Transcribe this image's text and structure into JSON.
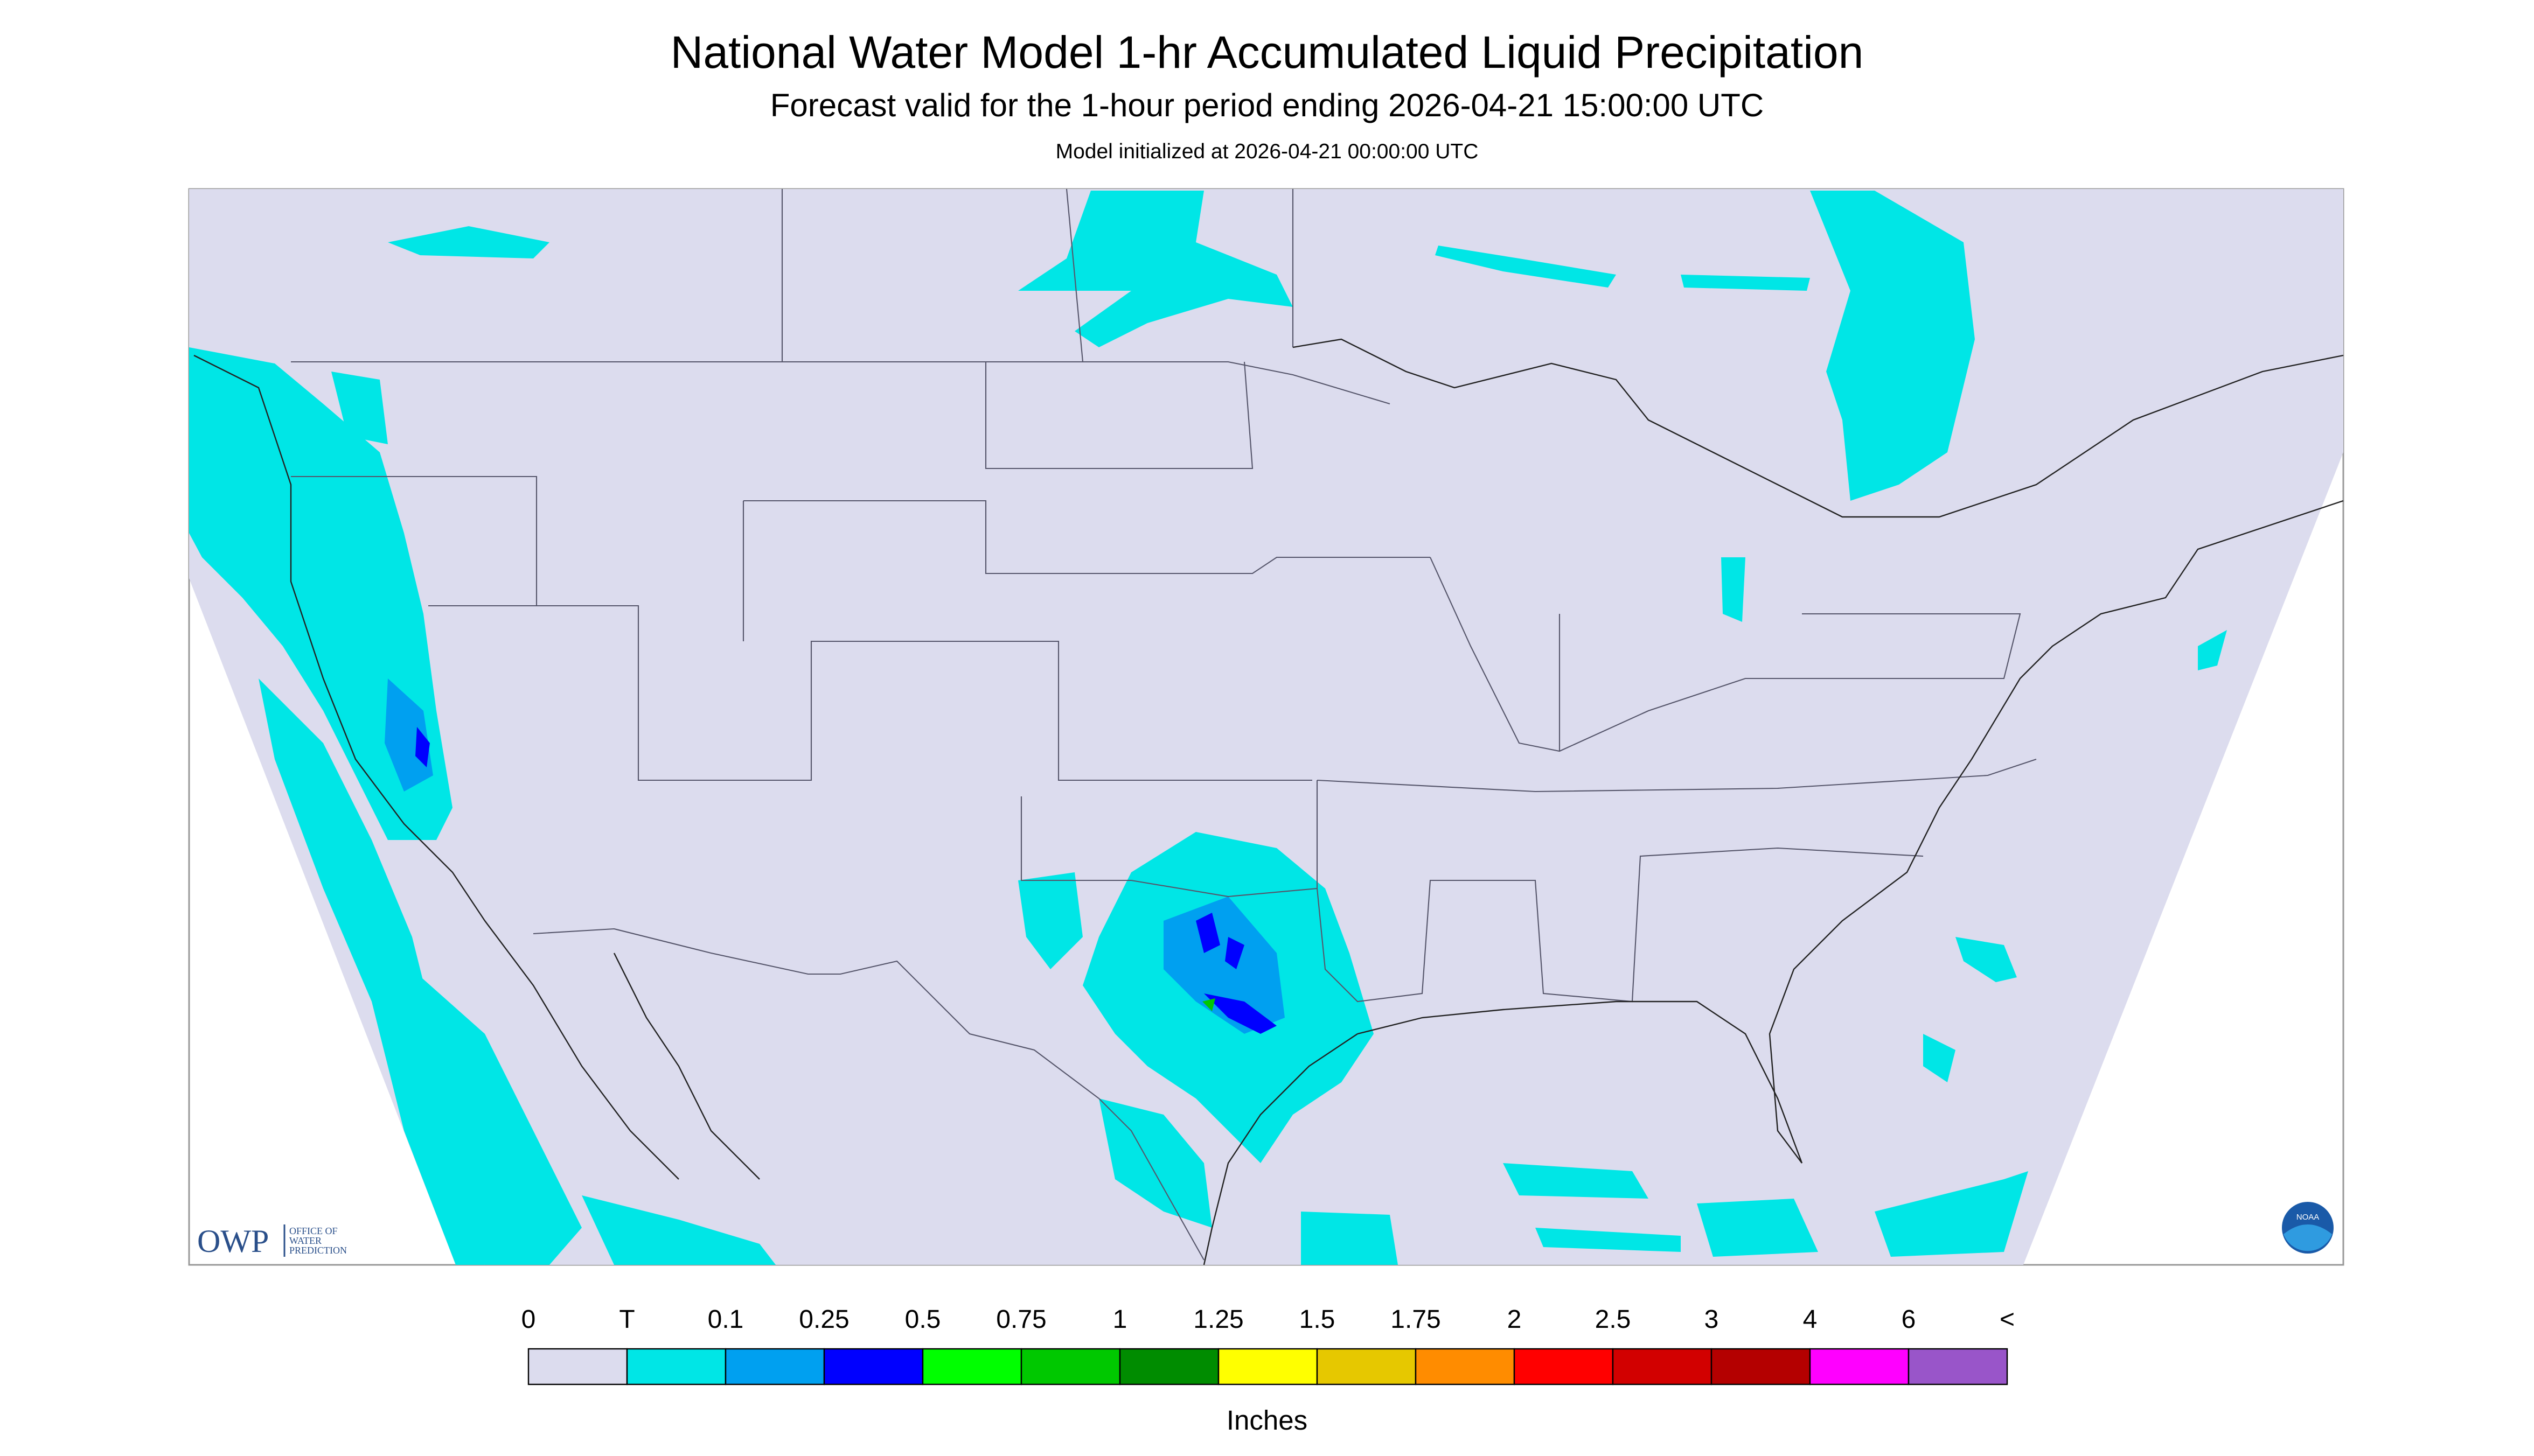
{
  "title": "National Water Model 1-hr Accumulated Liquid Precipitation",
  "subtitle": "Forecast valid for the 1-hour period ending 2026-04-21 15:00:00 UTC",
  "init": "Model initialized at 2026-04-21 00:00:00 UTC",
  "legend": {
    "labels": [
      "0",
      "T",
      "0.1",
      "0.25",
      "0.5",
      "0.75",
      "1",
      "1.25",
      "1.5",
      "1.75",
      "2",
      "2.5",
      "3",
      "4",
      "6",
      "<"
    ],
    "colors": [
      "#dcdcee",
      "#00e6e6",
      "#00a0f0",
      "#0000ff",
      "#00ff00",
      "#00c800",
      "#008c00",
      "#ffff00",
      "#e6c800",
      "#ff8c00",
      "#ff0000",
      "#d20000",
      "#b40000",
      "#ff00ff",
      "#9955c9"
    ],
    "unit": "Inches"
  },
  "logo": {
    "owp": "OWP",
    "lines": [
      "OFFICE OF",
      "WATER",
      "PREDICTION"
    ],
    "noaa": "NOAA"
  }
}
